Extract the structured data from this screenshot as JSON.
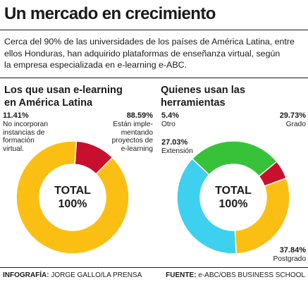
{
  "title": "Un mercado en crecimiento",
  "intro": "Cerca del 90% de las universidades de los países de América Latina, entre\nellos Honduras, han adquirido plataformas de enseñanza virtual, según\nla empresa especializada en e-learning e-ABC.",
  "chart_data": [
    {
      "type": "pie",
      "title": "Los que usan e-learning\nen América Latina",
      "center_label": "TOTAL\n100%",
      "series": [
        {
          "value": 88.59,
          "pct_label": "88.59%",
          "desc": "Están imple-\nmentando\nproyectos de\ne-learning",
          "color": "#fbbf14"
        },
        {
          "value": 11.41,
          "pct_label": "11.41%",
          "desc": "No incorporan\ninstancias de\nformación\nvirtual.",
          "color": "#c8102e"
        }
      ]
    },
    {
      "type": "pie",
      "title": "Quienes usan las herramientas",
      "center_label": "TOTAL\n100%",
      "series": [
        {
          "value": 29.73,
          "pct_label": "29.73%",
          "desc": "Grado",
          "color": "#fbbf14"
        },
        {
          "value": 37.84,
          "pct_label": "37.84%",
          "desc": "Postgrado",
          "color": "#3dd1ef"
        },
        {
          "value": 27.03,
          "pct_label": "27.03%",
          "desc": "Extensión",
          "color": "#38c23a"
        },
        {
          "value": 5.4,
          "pct_label": "5.4%",
          "desc": "Otro",
          "color": "#c8102e"
        }
      ]
    }
  ],
  "footer": {
    "left_label": "INFOGRAFÍA:",
    "left_value": "JORGE GALLO/LA PRENSA",
    "right_label": "FUENTE:",
    "right_value": "e-ABC/OBS BUSINESS SCHOOL"
  }
}
